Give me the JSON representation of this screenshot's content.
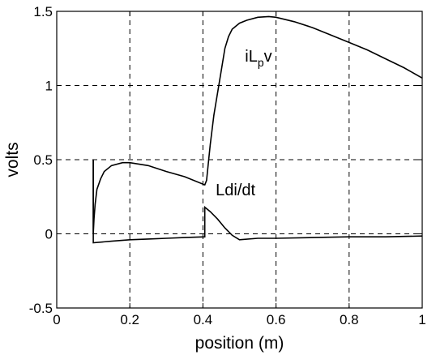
{
  "chart_data": {
    "type": "line",
    "title": "",
    "xlabel": "position (m)",
    "ylabel": "volts",
    "xlim": [
      0,
      1
    ],
    "ylim": [
      -0.5,
      1.5
    ],
    "grid": true,
    "xticks": [
      0,
      0.2,
      0.4,
      0.6,
      0.8,
      1
    ],
    "xtick_labels": [
      "0",
      "0.2",
      "0.4",
      "0.6",
      "0.8",
      "1"
    ],
    "yticks": [
      -0.5,
      0,
      0.5,
      1,
      1.5
    ],
    "ytick_labels": [
      "-0.5",
      "0",
      "0.5",
      "1",
      "1.5"
    ],
    "series": [
      {
        "points": [
          [
            0.1,
            0.5
          ],
          [
            0.1,
            0.0
          ],
          [
            0.102,
            0.1
          ],
          [
            0.105,
            0.2
          ],
          [
            0.11,
            0.3
          ],
          [
            0.12,
            0.37
          ],
          [
            0.13,
            0.42
          ],
          [
            0.15,
            0.46
          ],
          [
            0.18,
            0.48
          ],
          [
            0.2,
            0.48
          ],
          [
            0.25,
            0.46
          ],
          [
            0.3,
            0.42
          ],
          [
            0.35,
            0.385
          ],
          [
            0.405,
            0.33
          ],
          [
            0.41,
            0.36
          ],
          [
            0.42,
            0.6
          ],
          [
            0.43,
            0.8
          ],
          [
            0.45,
            1.1
          ],
          [
            0.46,
            1.25
          ],
          [
            0.47,
            1.33
          ],
          [
            0.48,
            1.38
          ],
          [
            0.5,
            1.42
          ],
          [
            0.52,
            1.44
          ],
          [
            0.55,
            1.46
          ],
          [
            0.58,
            1.465
          ],
          [
            0.6,
            1.46
          ],
          [
            0.65,
            1.43
          ],
          [
            0.7,
            1.39
          ],
          [
            0.75,
            1.34
          ],
          [
            0.8,
            1.29
          ],
          [
            0.85,
            1.24
          ],
          [
            0.9,
            1.18
          ],
          [
            0.95,
            1.12
          ],
          [
            1.0,
            1.05
          ]
        ]
      },
      {
        "points": [
          [
            0.1,
            0.5
          ],
          [
            0.1,
            -0.06
          ],
          [
            0.15,
            -0.05
          ],
          [
            0.2,
            -0.04
          ],
          [
            0.25,
            -0.035
          ],
          [
            0.3,
            -0.03
          ],
          [
            0.35,
            -0.025
          ],
          [
            0.405,
            -0.02
          ],
          [
            0.405,
            0.18
          ],
          [
            0.42,
            0.15
          ],
          [
            0.44,
            0.1
          ],
          [
            0.46,
            0.04
          ],
          [
            0.48,
            -0.01
          ],
          [
            0.5,
            -0.04
          ],
          [
            0.55,
            -0.03
          ],
          [
            0.6,
            -0.03
          ],
          [
            0.7,
            -0.025
          ],
          [
            0.8,
            -0.02
          ],
          [
            0.9,
            -0.02
          ],
          [
            1.0,
            -0.015
          ]
        ]
      }
    ],
    "annotations": [
      {
        "text_main": "iL",
        "text_sub": "p",
        "text_tail": "v",
        "x": 0.515,
        "y": 1.16
      },
      {
        "text_main": "Ldi/dt",
        "text_sub": "",
        "text_tail": "",
        "x": 0.435,
        "y": 0.26
      }
    ]
  }
}
